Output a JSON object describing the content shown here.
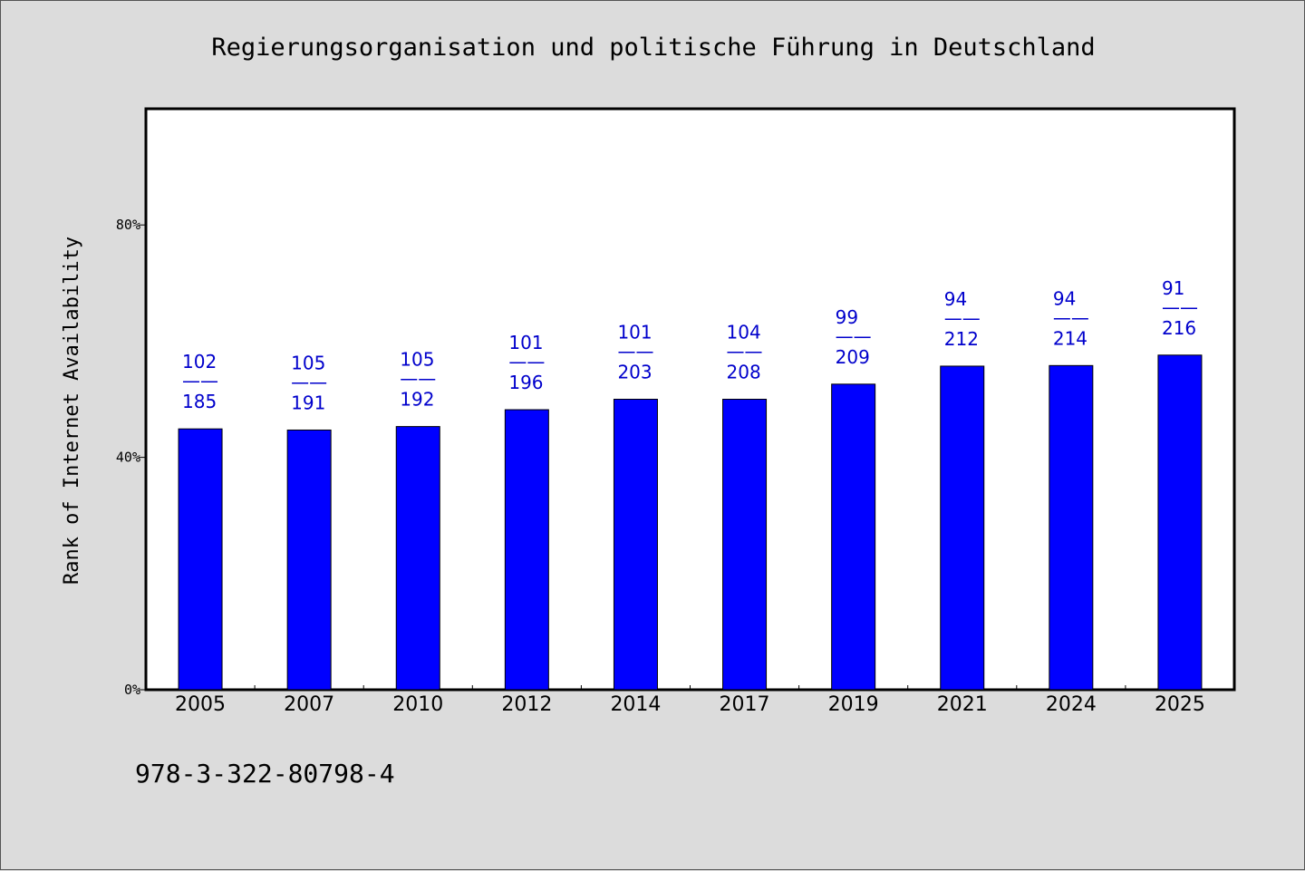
{
  "colors": {
    "background": "#dcdcdc",
    "plot_background": "#ffffff",
    "bar": "#0000ff",
    "label": "#0000cc"
  },
  "footer": {
    "text": "978-3-322-80798-4"
  },
  "chart_data": {
    "type": "bar",
    "title": "Regierungsorganisation und politische Führung in Deutschland",
    "xlabel": "",
    "ylabel": "Rank of Internet Availability",
    "ylim": [
      0,
      100
    ],
    "yticks": [
      0,
      40,
      80
    ],
    "ytick_labels": [
      "0%",
      "40%",
      "80%"
    ],
    "grid": false,
    "categories": [
      "2005",
      "2007",
      "2010",
      "2012",
      "2014",
      "2017",
      "2019",
      "2021",
      "2024",
      "2025"
    ],
    "values": [
      44.9,
      44.7,
      45.3,
      48.2,
      50.0,
      50.0,
      52.6,
      55.7,
      55.8,
      57.6
    ],
    "annotations": [
      {
        "rank": "102",
        "separator": "——",
        "total": "185"
      },
      {
        "rank": "105",
        "separator": "——",
        "total": "191"
      },
      {
        "rank": "105",
        "separator": "——",
        "total": "192"
      },
      {
        "rank": "101",
        "separator": "——",
        "total": "196"
      },
      {
        "rank": "101",
        "separator": "——",
        "total": "203"
      },
      {
        "rank": "104",
        "separator": "——",
        "total": "208"
      },
      {
        "rank": "99",
        "separator": "——",
        "total": "209"
      },
      {
        "rank": "94",
        "separator": "——",
        "total": "212"
      },
      {
        "rank": "94",
        "separator": "——",
        "total": "214"
      },
      {
        "rank": "91",
        "separator": "——",
        "total": "216"
      }
    ]
  }
}
